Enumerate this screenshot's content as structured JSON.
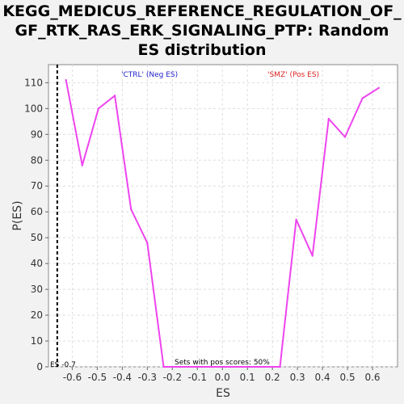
{
  "chart_data": {
    "type": "line",
    "title_lines": [
      "KEGG_MEDICUS_REFERENCE_REGULATION_OF_",
      "GF_RTK_RAS_ERK_SIGNALING_PTP: Random",
      "ES distribution"
    ],
    "xlabel": "ES",
    "ylabel": "P(ES)",
    "xlim": [
      -0.695,
      0.7
    ],
    "ylim": [
      0,
      117
    ],
    "x_ticks": [
      -0.6,
      -0.5,
      -0.4,
      -0.3,
      -0.2,
      -0.1,
      0.0,
      0.1,
      0.2,
      0.3,
      0.4,
      0.5,
      0.6
    ],
    "x_tick_labels": [
      "-0.6",
      "-0.5",
      "-0.4",
      "-0.3",
      "-0.2",
      "-0.1",
      "0.0",
      "0.1",
      "0.2",
      "0.3",
      "0.4",
      "0.5",
      "0.6"
    ],
    "y_ticks": [
      0,
      10,
      20,
      30,
      40,
      50,
      60,
      70,
      80,
      90,
      100,
      110
    ],
    "y_tick_labels": [
      "0",
      "10",
      "20",
      "30",
      "40",
      "50",
      "60",
      "70",
      "80",
      "90",
      "100",
      "110"
    ],
    "grid": true,
    "series": [
      {
        "color": "#ee44ee",
        "x": [
          -0.625,
          -0.56,
          -0.495,
          -0.43,
          -0.365,
          -0.3,
          -0.235,
          -0.17,
          -0.105,
          -0.04,
          0.03,
          0.1,
          0.165,
          0.23,
          0.295,
          0.36,
          0.425,
          0.49,
          0.56,
          0.625
        ],
        "y": [
          111,
          78,
          100,
          105,
          61,
          48,
          0,
          0,
          0,
          0,
          0,
          0,
          0,
          0,
          57,
          43,
          96,
          89,
          104,
          108
        ]
      }
    ],
    "vline": {
      "x": -0.66,
      "label": "ES -0.7"
    },
    "legend": {
      "neg": {
        "text": "'CTRL' (Neg ES)",
        "color": "#2222cc"
      },
      "pos": {
        "text": "'SMZ' (Pos ES)",
        "color": "#dd2222"
      }
    },
    "annotation": "Sets with pos scores: 50%"
  }
}
